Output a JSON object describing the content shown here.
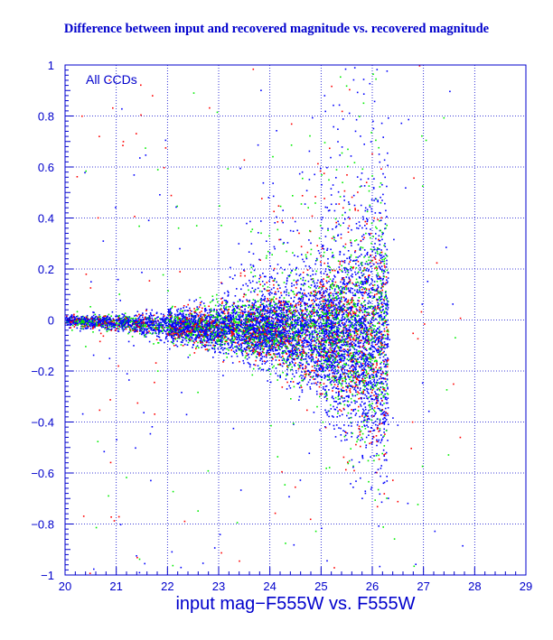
{
  "chart_data": {
    "type": "scatter",
    "title": "Difference between input and recovered magnitude vs. recovered magnitude",
    "xlabel": "input mag−F555W vs. F555W",
    "ylabel": "",
    "annotation": "All CCDs",
    "xlim": [
      20,
      29
    ],
    "ylim": [
      -1,
      1
    ],
    "x_ticks": [
      "20",
      "21",
      "22",
      "23",
      "24",
      "25",
      "26",
      "27",
      "28",
      "29"
    ],
    "y_ticks": [
      "1",
      "0.8",
      "0.6",
      "0.4",
      "0.2",
      "0",
      "−0.2",
      "−0.4",
      "−0.6",
      "−0.8",
      "−1"
    ],
    "grid": true,
    "axis_color": "#0000cc",
    "series": [
      {
        "color": "#0000ff"
      },
      {
        "color": "#00ee00"
      },
      {
        "color": "#ff0000"
      }
    ],
    "trend": {
      "description_points_x": [
        20.0,
        21.0,
        22.0,
        23.0,
        24.0,
        24.5,
        25.0,
        25.5,
        26.0,
        26.3
      ],
      "median_y": [
        0.0,
        -0.01,
        -0.02,
        -0.03,
        -0.04,
        -0.05,
        -0.06,
        -0.08,
        -0.1,
        -0.12
      ],
      "spread_y": [
        0.02,
        0.03,
        0.05,
        0.08,
        0.12,
        0.16,
        0.22,
        0.3,
        0.4,
        0.45
      ]
    },
    "magnitude_limit": 26.3
  },
  "colors": {
    "background": "#ffffff",
    "frame": "#000000"
  }
}
